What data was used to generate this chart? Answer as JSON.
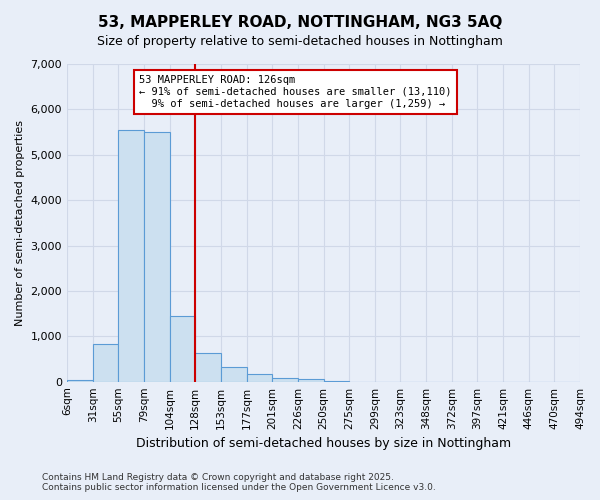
{
  "title": "53, MAPPERLEY ROAD, NOTTINGHAM, NG3 5AQ",
  "subtitle": "Size of property relative to semi-detached houses in Nottingham",
  "xlabel": "Distribution of semi-detached houses by size in Nottingham",
  "ylabel": "Number of semi-detached properties",
  "smaller_pct": "91%",
  "smaller_count": "13,110",
  "larger_pct": "9%",
  "larger_count": "1,259",
  "bin_labels": [
    "6sqm",
    "31sqm",
    "55sqm",
    "79sqm",
    "104sqm",
    "128sqm",
    "153sqm",
    "177sqm",
    "201sqm",
    "226sqm",
    "250sqm",
    "275sqm",
    "299sqm",
    "323sqm",
    "348sqm",
    "372sqm",
    "397sqm",
    "421sqm",
    "446sqm",
    "470sqm",
    "494sqm"
  ],
  "bar_heights": [
    30,
    820,
    5550,
    5500,
    1450,
    630,
    320,
    160,
    80,
    50,
    10,
    0,
    0,
    0,
    0,
    0,
    0,
    0,
    0,
    0
  ],
  "bar_color": "#cce0f0",
  "bar_edge_color": "#5b9bd5",
  "marker_line_color": "#cc0000",
  "ylim": [
    0,
    7000
  ],
  "yticks": [
    0,
    1000,
    2000,
    3000,
    4000,
    5000,
    6000,
    7000
  ],
  "grid_color": "#d0d8e8",
  "background_color": "#e8eef8",
  "footer_line1": "Contains HM Land Registry data © Crown copyright and database right 2025.",
  "footer_line2": "Contains public sector information licensed under the Open Government Licence v3.0."
}
